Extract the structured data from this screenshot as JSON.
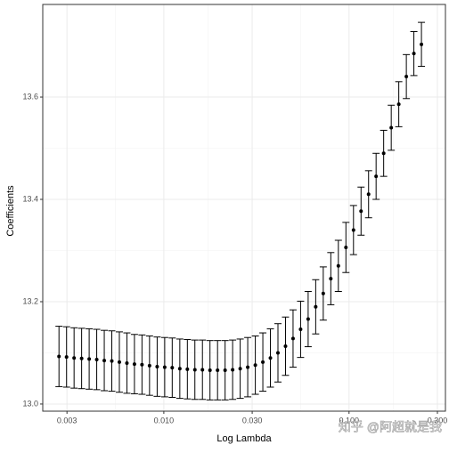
{
  "chart_data": {
    "type": "errorbar",
    "xlabel": "Log Lambda",
    "ylabel": "Coefficients",
    "xscale": "log",
    "grid": true,
    "color": "#000000",
    "x": [
      0.002716,
      0.002984,
      0.003277,
      0.003599,
      0.003953,
      0.004342,
      0.004769,
      0.005238,
      0.005753,
      0.006319,
      0.00694,
      0.007622,
      0.008372,
      0.009205,
      0.01011,
      0.0111,
      0.0122,
      0.0134,
      0.01471,
      0.01616,
      0.01775,
      0.0195,
      0.02142,
      0.02352,
      0.02584,
      0.02838,
      0.03119,
      0.03425,
      0.03762,
      0.04132,
      0.04539,
      0.04986,
      0.05476,
      0.06015,
      0.06607,
      0.07258,
      0.07972,
      0.08757,
      0.0962,
      0.1057,
      0.1161,
      0.1275,
      0.14,
      0.1538,
      0.169,
      0.1856,
      0.2039,
      0.2239,
      0.246
    ],
    "values": [
      13.093,
      13.092,
      13.09,
      13.089,
      13.088,
      13.087,
      13.085,
      13.084,
      13.082,
      13.08,
      13.078,
      13.077,
      13.075,
      13.073,
      13.072,
      13.071,
      13.069,
      13.068,
      13.067,
      13.067,
      13.066,
      13.066,
      13.066,
      13.067,
      13.069,
      13.072,
      13.076,
      13.082,
      13.09,
      13.1,
      13.113,
      13.128,
      13.146,
      13.166,
      13.19,
      13.216,
      13.245,
      13.27,
      13.306,
      13.34,
      13.377,
      13.41,
      13.445,
      13.49,
      13.54,
      13.586,
      13.64,
      13.685,
      13.703
    ],
    "errors": [
      0.059,
      0.059,
      0.059,
      0.059,
      0.059,
      0.059,
      0.059,
      0.059,
      0.059,
      0.059,
      0.058,
      0.058,
      0.058,
      0.058,
      0.058,
      0.058,
      0.058,
      0.058,
      0.058,
      0.058,
      0.058,
      0.058,
      0.058,
      0.058,
      0.058,
      0.058,
      0.057,
      0.057,
      0.057,
      0.057,
      0.057,
      0.056,
      0.055,
      0.054,
      0.053,
      0.052,
      0.051,
      0.05,
      0.049,
      0.048,
      0.047,
      0.046,
      0.045,
      0.045,
      0.044,
      0.044,
      0.043,
      0.043,
      0.043
    ],
    "xlim": [
      0.00222,
      0.3315
    ],
    "ylim": [
      12.986,
      13.781
    ],
    "xticks": [
      {
        "value": 0.003,
        "label": "0.003"
      },
      {
        "value": 0.01,
        "label": "0.010"
      },
      {
        "value": 0.03,
        "label": "0.030"
      },
      {
        "value": 0.1,
        "label": "0.100"
      },
      {
        "value": 0.3,
        "label": "0.300"
      }
    ],
    "yticks": [
      {
        "value": 13.0,
        "label": "13.0"
      },
      {
        "value": 13.2,
        "label": "13.2"
      },
      {
        "value": 13.4,
        "label": "13.4"
      },
      {
        "value": 13.6,
        "label": "13.6"
      }
    ],
    "watermark": "知乎 @阿超就是我"
  }
}
